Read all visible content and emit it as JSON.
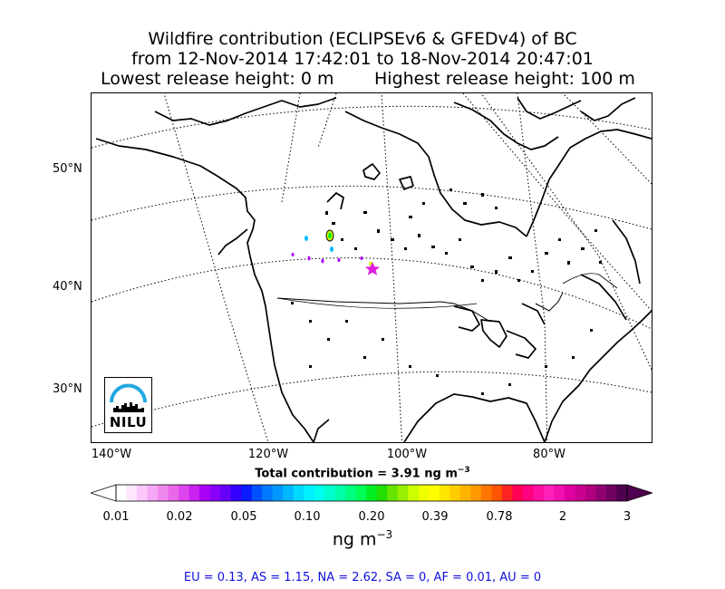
{
  "title": {
    "line1": "Wildfire contribution (ECLIPSEv6 & GFEDv4) of BC",
    "line2": "from 12-Nov-2014 17:42:01 to 18-Nov-2014 20:47:01",
    "lowest": "Lowest release height: 0 m",
    "highest": "Highest release height: 100 m"
  },
  "map": {
    "lat_labels": [
      "50°N",
      "40°N",
      "30°N"
    ],
    "lon_labels": [
      "140°W",
      "120°W",
      "100°W",
      "80°W"
    ],
    "release_marker": "magenta-star",
    "logo_text": "NILU"
  },
  "total": {
    "label": "Total contribution = 3.91 ng m",
    "exp": "−3"
  },
  "colorbar": {
    "ticks": [
      "0.01",
      "0.02",
      "0.05",
      "0.10",
      "0.20",
      "0.39",
      "0.78",
      "2",
      "3"
    ],
    "colors": [
      "#ffffff",
      "#ffe6ff",
      "#fcc8fc",
      "#f5a8f5",
      "#ee88ee",
      "#e868e8",
      "#dd44ee",
      "#c822f0",
      "#aa00f5",
      "#8800f8",
      "#6600fa",
      "#3300ff",
      "#0a1cff",
      "#0050ff",
      "#0078ff",
      "#0098ff",
      "#00b8ff",
      "#00d8ff",
      "#00f0ff",
      "#00ffee",
      "#00ffcc",
      "#00ffaa",
      "#00ff80",
      "#00ff55",
      "#00ee22",
      "#22dd00",
      "#66e600",
      "#99ee00",
      "#ccff00",
      "#eeff00",
      "#ffff00",
      "#ffe600",
      "#ffcc00",
      "#ffb400",
      "#ff9900",
      "#ff7700",
      "#ff5500",
      "#ff2222",
      "#ff0055",
      "#ff0080",
      "#ff10a0",
      "#ff20b8",
      "#f010b0",
      "#e000a0",
      "#cc0090",
      "#b00080",
      "#900070",
      "#700060",
      "#500050"
    ],
    "unit_label": "ng m",
    "unit_exp": "−3"
  },
  "regions": "EU = 0.13,  AS = 1.15,  NA = 2.62,  SA = 0,  AF = 0.01,  AU = 0"
}
